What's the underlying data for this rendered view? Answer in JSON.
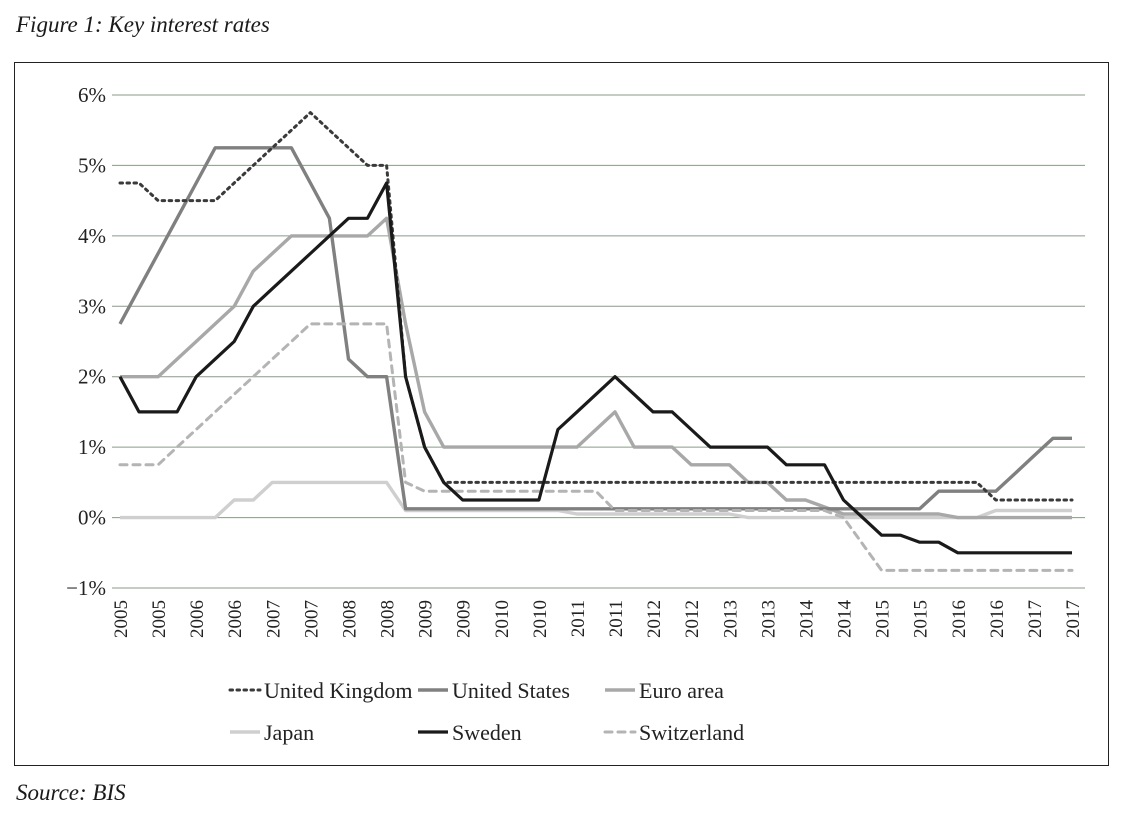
{
  "figure": {
    "title": "Figure 1: Key interest rates",
    "source": "Source: BIS"
  },
  "chart_data": {
    "type": "line",
    "title": "Figure 1: Key interest rates",
    "xlabel": "",
    "ylabel": "",
    "ylim": [
      -1,
      6
    ],
    "yticks": [
      6,
      5,
      4,
      3,
      2,
      1,
      0,
      -1
    ],
    "ytick_labels": [
      "6%",
      "5%",
      "4%",
      "3%",
      "2%",
      "1%",
      "0%",
      "−1%"
    ],
    "grid": "horizontal",
    "x_tick_labels": [
      "2005",
      "2005",
      "2006",
      "2006",
      "2007",
      "2007",
      "2008",
      "2008",
      "2009",
      "2009",
      "2010",
      "2010",
      "2011",
      "2011",
      "2012",
      "2012",
      "2013",
      "2013",
      "2014",
      "2014",
      "2015",
      "2015",
      "2016",
      "2016",
      "2017",
      "2017"
    ],
    "x_points": 51,
    "legend_position": "bottom",
    "series": [
      {
        "name": "United Kingdom",
        "style": "dotted",
        "color": "#3a3a3a",
        "values": [
          4.75,
          4.75,
          4.5,
          4.5,
          4.5,
          4.5,
          4.75,
          5.0,
          5.25,
          5.5,
          5.75,
          5.5,
          5.25,
          5.0,
          5.0,
          2.0,
          1.0,
          0.5,
          0.5,
          0.5,
          0.5,
          0.5,
          0.5,
          0.5,
          0.5,
          0.5,
          0.5,
          0.5,
          0.5,
          0.5,
          0.5,
          0.5,
          0.5,
          0.5,
          0.5,
          0.5,
          0.5,
          0.5,
          0.5,
          0.5,
          0.5,
          0.5,
          0.5,
          0.5,
          0.5,
          0.5,
          0.25,
          0.25,
          0.25,
          0.25,
          0.25
        ]
      },
      {
        "name": "United States",
        "style": "solid",
        "color": "#808080",
        "values": [
          2.75,
          3.25,
          3.75,
          4.25,
          4.75,
          5.25,
          5.25,
          5.25,
          5.25,
          5.25,
          4.75,
          4.25,
          2.25,
          2.0,
          2.0,
          0.125,
          0.125,
          0.125,
          0.125,
          0.125,
          0.125,
          0.125,
          0.125,
          0.125,
          0.125,
          0.125,
          0.125,
          0.125,
          0.125,
          0.125,
          0.125,
          0.125,
          0.125,
          0.125,
          0.125,
          0.125,
          0.125,
          0.125,
          0.125,
          0.125,
          0.125,
          0.125,
          0.125,
          0.375,
          0.375,
          0.375,
          0.375,
          0.625,
          0.875,
          1.125,
          1.125
        ]
      },
      {
        "name": "Euro area",
        "style": "solid",
        "color": "#a8a8a8",
        "values": [
          2.0,
          2.0,
          2.0,
          2.25,
          2.5,
          2.75,
          3.0,
          3.5,
          3.75,
          4.0,
          4.0,
          4.0,
          4.0,
          4.0,
          4.25,
          2.75,
          1.5,
          1.0,
          1.0,
          1.0,
          1.0,
          1.0,
          1.0,
          1.0,
          1.0,
          1.25,
          1.5,
          1.0,
          1.0,
          1.0,
          0.75,
          0.75,
          0.75,
          0.5,
          0.5,
          0.25,
          0.25,
          0.15,
          0.05,
          0.05,
          0.05,
          0.05,
          0.05,
          0.05,
          0.0,
          0.0,
          0.0,
          0.0,
          0.0,
          0.0,
          0.0
        ]
      },
      {
        "name": "Japan",
        "style": "solid",
        "color": "#cfcfcf",
        "values": [
          0.0,
          0.0,
          0.0,
          0.0,
          0.0,
          0.0,
          0.25,
          0.25,
          0.5,
          0.5,
          0.5,
          0.5,
          0.5,
          0.5,
          0.5,
          0.1,
          0.1,
          0.1,
          0.1,
          0.1,
          0.1,
          0.1,
          0.1,
          0.1,
          0.05,
          0.05,
          0.05,
          0.05,
          0.05,
          0.05,
          0.05,
          0.05,
          0.05,
          0.0,
          0.0,
          0.0,
          0.0,
          0.0,
          0.0,
          0.0,
          0.0,
          0.0,
          0.0,
          0.0,
          0.0,
          0.0,
          0.1,
          0.1,
          0.1,
          0.1,
          0.1
        ]
      },
      {
        "name": "Sweden",
        "style": "solid",
        "color": "#1a1a1a",
        "values": [
          2.0,
          1.5,
          1.5,
          1.5,
          2.0,
          2.25,
          2.5,
          3.0,
          3.25,
          3.5,
          3.75,
          4.0,
          4.25,
          4.25,
          4.75,
          2.0,
          1.0,
          0.5,
          0.25,
          0.25,
          0.25,
          0.25,
          0.25,
          1.25,
          1.5,
          1.75,
          2.0,
          1.75,
          1.5,
          1.5,
          1.25,
          1.0,
          1.0,
          1.0,
          1.0,
          0.75,
          0.75,
          0.75,
          0.25,
          0.0,
          -0.25,
          -0.25,
          -0.35,
          -0.35,
          -0.5,
          -0.5,
          -0.5,
          -0.5,
          -0.5,
          -0.5,
          -0.5
        ]
      },
      {
        "name": "Switzerland",
        "style": "dashed",
        "color": "#b4b4b4",
        "values": [
          0.75,
          0.75,
          0.75,
          1.0,
          1.25,
          1.5,
          1.75,
          2.0,
          2.25,
          2.5,
          2.75,
          2.75,
          2.75,
          2.75,
          2.75,
          0.5,
          0.375,
          0.375,
          0.375,
          0.375,
          0.375,
          0.375,
          0.375,
          0.375,
          0.375,
          0.375,
          0.1,
          0.1,
          0.1,
          0.1,
          0.1,
          0.1,
          0.1,
          0.1,
          0.1,
          0.1,
          0.1,
          0.1,
          0.0,
          -0.375,
          -0.75,
          -0.75,
          -0.75,
          -0.75,
          -0.75,
          -0.75,
          -0.75,
          -0.75,
          -0.75,
          -0.75,
          -0.75
        ]
      }
    ]
  }
}
